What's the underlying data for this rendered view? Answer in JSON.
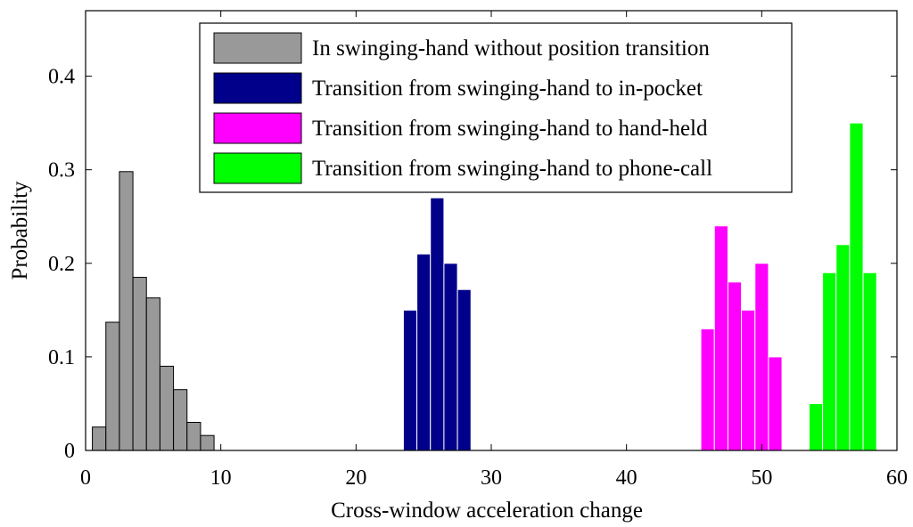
{
  "chart_data": {
    "type": "bar",
    "title": "",
    "xlabel": "Cross-window acceleration change",
    "ylabel": "Probability",
    "xlim": [
      0,
      60
    ],
    "ylim": [
      0,
      0.47
    ],
    "xticks": [
      0,
      10,
      20,
      30,
      40,
      50,
      60
    ],
    "yticks": [
      0,
      0.1,
      0.2,
      0.3,
      0.4
    ],
    "ytick_labels": [
      "0",
      "0.1",
      "0.2",
      "0.3",
      "0.4"
    ],
    "grid": false,
    "legend_position": "top-center",
    "bin_width": 1,
    "series": [
      {
        "name": "In swinging-hand without position transition",
        "color": "#999999",
        "x": [
          1,
          2,
          3,
          4,
          5,
          6,
          7,
          8,
          9
        ],
        "values": [
          0.025,
          0.137,
          0.298,
          0.185,
          0.163,
          0.09,
          0.065,
          0.03,
          0.016
        ]
      },
      {
        "name": "Transition from swinging-hand to in-pocket",
        "color": "#00008b",
        "x": [
          24,
          25,
          26,
          27,
          28
        ],
        "values": [
          0.15,
          0.21,
          0.27,
          0.2,
          0.172
        ]
      },
      {
        "name": "Transition from swinging-hand to hand-held",
        "color": "#ff00ff",
        "x": [
          46,
          47,
          48,
          49,
          50,
          51
        ],
        "values": [
          0.13,
          0.24,
          0.18,
          0.15,
          0.2,
          0.1
        ]
      },
      {
        "name": "Transition from swinging-hand to phone-call",
        "color": "#00ff00",
        "x": [
          54,
          55,
          56,
          57,
          58
        ],
        "values": [
          0.05,
          0.19,
          0.22,
          0.35,
          0.19
        ]
      }
    ]
  }
}
